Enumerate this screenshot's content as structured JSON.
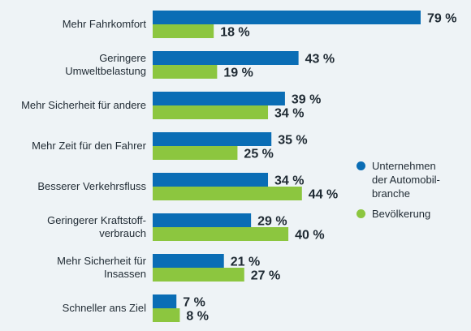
{
  "chart_data": {
    "type": "bar",
    "orientation": "horizontal",
    "categories": [
      "Mehr Fahrkomfort",
      "Geringere\nUmweltbelastung",
      "Mehr Sicherheit für andere",
      "Mehr Zeit für den Fahrer",
      "Besserer Verkehrsfluss",
      "Geringerer Kraftstoff-\nverbrauch",
      "Mehr Sicherheit für\nInsassen",
      "Schneller ans Ziel"
    ],
    "series": [
      {
        "name": "Unternehmen\nder Automobil-\nbranche",
        "color": "#0a6db5",
        "values": [
          79,
          43,
          39,
          35,
          34,
          29,
          21,
          7
        ]
      },
      {
        "name": "Bevölkerung",
        "color": "#8cc63f",
        "values": [
          18,
          19,
          34,
          25,
          44,
          40,
          27,
          8
        ]
      }
    ],
    "value_suffix": " %",
    "xlim": [
      0,
      100
    ],
    "legend_position": "right",
    "grid": false
  }
}
